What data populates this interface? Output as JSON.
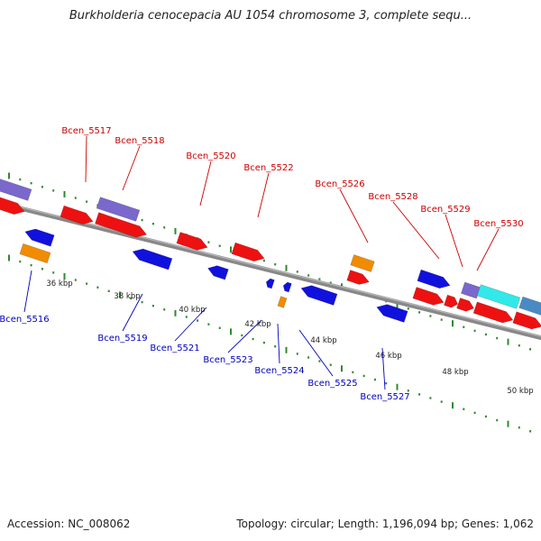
{
  "title": "Burkholderia cenocepacia AU 1054 chromosome 3, complete sequ...",
  "footer": {
    "accession": "Accession: NC_008062",
    "meta": "Topology: circular; Length: 1,196,094 bp; Genes: 1,062"
  },
  "colors": {
    "backbone": "#888888",
    "tick": "#2f8a2f",
    "upper_label": "#cc0000",
    "lower_label": "#0000bb",
    "ruler_label": "#222222"
  },
  "ruler_labels": [
    "36 kbp",
    "38 kbp",
    "40 kbp",
    "42 kbp",
    "44 kbp",
    "46 kbp",
    "48 kbp",
    "50 kbp"
  ],
  "upper_gene_labels": [
    "Bcen_5517",
    "Bcen_5518",
    "Bcen_5520",
    "Bcen_5522",
    "Bcen_5526",
    "Bcen_5528",
    "Bcen_5529",
    "Bcen_5530"
  ],
  "lower_gene_labels": [
    "Bcen_5516",
    "Bcen_5519",
    "Bcen_5521",
    "Bcen_5523",
    "Bcen_5524",
    "Bcen_5525",
    "Bcen_5527"
  ],
  "feature_colors": {
    "forward_cds": "#ee1111",
    "reverse_cds": "#1111dd",
    "orange_feature": "#f08c00",
    "purple_feature": "#7a68cc",
    "cyan_feature": "#33e8e8",
    "steel_feature": "#4a8ac4"
  }
}
